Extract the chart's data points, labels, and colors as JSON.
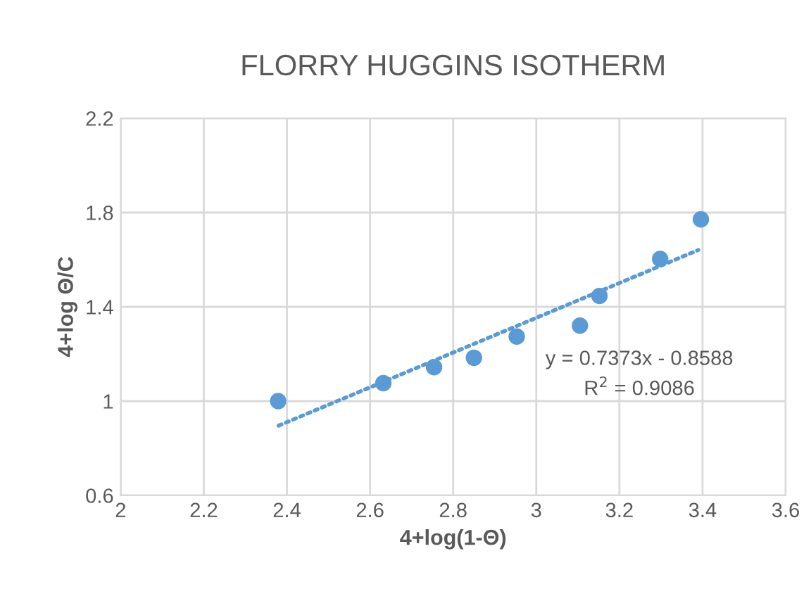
{
  "chart_data": {
    "type": "scatter",
    "title": "FLORRY HUGGINS ISOTHERM",
    "xlabel": "4+log(1-Θ)",
    "ylabel": "4+log Θ/C",
    "x": [
      2.379,
      2.632,
      2.754,
      2.85,
      2.953,
      3.105,
      3.152,
      3.298,
      3.396
    ],
    "series": [
      {
        "color": "#5b9bd5",
        "marker": "circle",
        "values": [
          1.0,
          1.076,
          1.144,
          1.184,
          1.274,
          1.32,
          1.446,
          1.603,
          1.771
        ]
      },
      {
        "type": "line",
        "color": "#5b9bd5",
        "line_style": "dotted",
        "marker": "none",
        "x": [
          2.38,
          3.39
        ],
        "values": [
          0.896,
          1.641
        ]
      }
    ],
    "annotations": [
      "y = 0.7373x - 0.8588",
      "R$^{2}$ = 0.9086"
    ],
    "xlim": [
      2,
      3.6
    ],
    "xticks": [
      2,
      2.2,
      2.4,
      2.6,
      2.8,
      3,
      3.2,
      3.4,
      3.6
    ],
    "ylim": [
      0.6,
      2.2
    ],
    "yticks": [
      0.6,
      1,
      1.4,
      1.8,
      2.2
    ],
    "grid": true
  }
}
